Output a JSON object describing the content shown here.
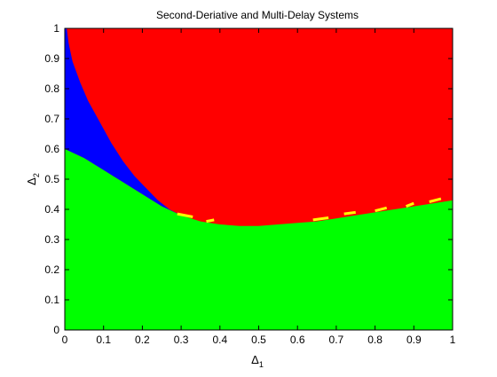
{
  "chart_data": {
    "type": "heatmap",
    "title": "Second-Deriative and Multi-Delay Systems",
    "xlabel": "Δ",
    "xlabel_subscript": "1",
    "ylabel": "Δ",
    "ylabel_subscript": "2",
    "xlim": [
      0,
      1
    ],
    "ylim": [
      0,
      1
    ],
    "x_ticks": [
      "0",
      "0.1",
      "0.2",
      "0.3",
      "0.4",
      "0.5",
      "0.6",
      "0.7",
      "0.8",
      "0.9",
      "1"
    ],
    "y_ticks": [
      "0",
      "0.1",
      "0.2",
      "0.3",
      "0.4",
      "0.5",
      "0.6",
      "0.7",
      "0.8",
      "0.9",
      "1"
    ],
    "grid": false,
    "regions": [
      {
        "color": "#00ff00",
        "boundary_upper": [
          [
            0,
            0.6
          ],
          [
            0.05,
            0.57
          ],
          [
            0.1,
            0.53
          ],
          [
            0.15,
            0.49
          ],
          [
            0.2,
            0.45
          ],
          [
            0.25,
            0.41
          ],
          [
            0.3,
            0.38
          ],
          [
            0.35,
            0.36
          ],
          [
            0.4,
            0.35
          ],
          [
            0.45,
            0.345
          ],
          [
            0.5,
            0.345
          ],
          [
            0.55,
            0.35
          ],
          [
            0.6,
            0.355
          ],
          [
            0.65,
            0.36
          ],
          [
            0.7,
            0.37
          ],
          [
            0.75,
            0.38
          ],
          [
            0.8,
            0.39
          ],
          [
            0.85,
            0.4
          ],
          [
            0.9,
            0.41
          ],
          [
            0.95,
            0.42
          ],
          [
            1.0,
            0.43
          ]
        ]
      },
      {
        "color": "#0000ff",
        "boundary_left_edge": [
          [
            0.005,
            1.0
          ],
          [
            0.01,
            0.95
          ],
          [
            0.02,
            0.89
          ],
          [
            0.04,
            0.82
          ],
          [
            0.06,
            0.76
          ],
          [
            0.09,
            0.69
          ],
          [
            0.12,
            0.62
          ],
          [
            0.15,
            0.56
          ],
          [
            0.18,
            0.51
          ],
          [
            0.21,
            0.47
          ],
          [
            0.24,
            0.43
          ],
          [
            0.27,
            0.4
          ],
          [
            0.3,
            0.38
          ]
        ]
      },
      {
        "color": "#ff0000"
      },
      {
        "color": "#ffff00",
        "boundary_segments": [
          [
            [
              0.29,
              0.385
            ],
            [
              0.33,
              0.375
            ]
          ],
          [
            [
              0.365,
              0.36
            ],
            [
              0.385,
              0.365
            ]
          ],
          [
            [
              0.64,
              0.365
            ],
            [
              0.68,
              0.372
            ]
          ],
          [
            [
              0.72,
              0.385
            ],
            [
              0.75,
              0.39
            ]
          ],
          [
            [
              0.8,
              0.395
            ],
            [
              0.83,
              0.405
            ]
          ],
          [
            [
              0.88,
              0.41
            ],
            [
              0.9,
              0.42
            ]
          ],
          [
            [
              0.94,
              0.425
            ],
            [
              0.97,
              0.435
            ]
          ]
        ]
      }
    ]
  }
}
